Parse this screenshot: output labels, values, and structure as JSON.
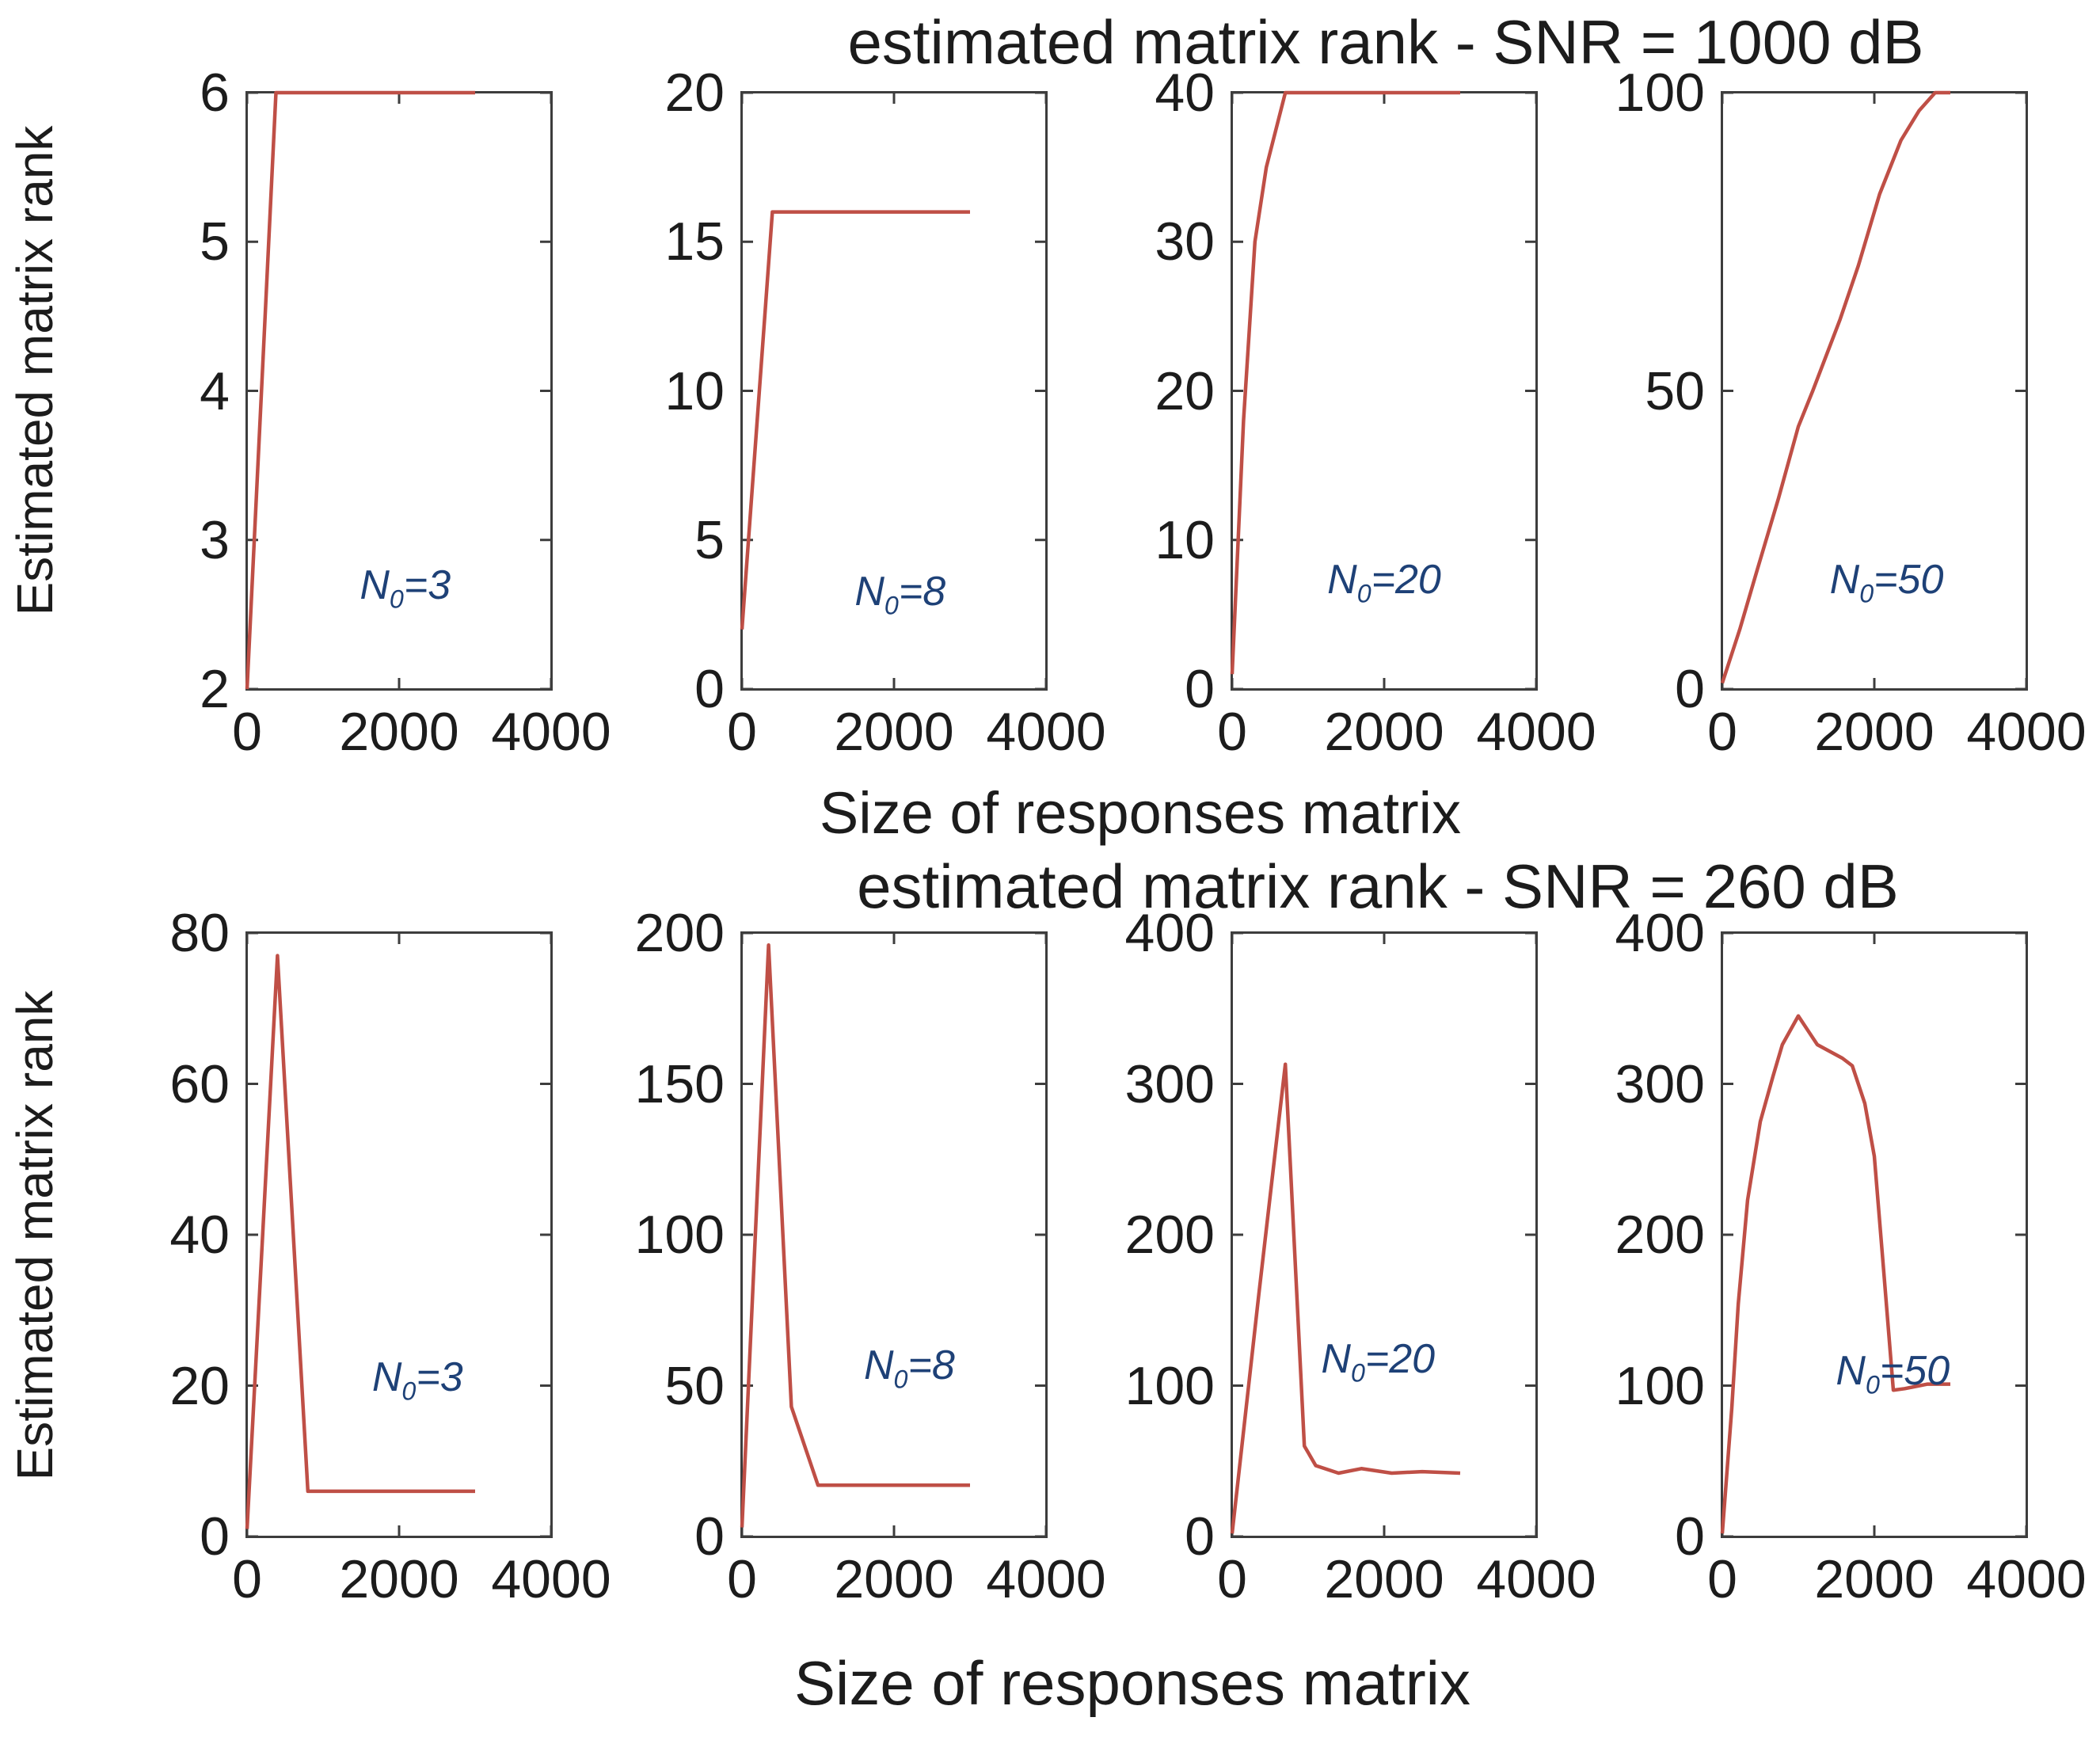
{
  "figure": {
    "rows": [
      {
        "title": "estimated matrix rank - SNR = 1000 dB",
        "ylabel": "Estimated matrix rank",
        "xlabel": "Size of responses matrix"
      },
      {
        "title": "estimated matrix rank - SNR = 260 dB",
        "ylabel": "Estimated matrix rank",
        "xlabel": "Size of responses matrix"
      }
    ]
  },
  "colors": {
    "line": "#bf4f46",
    "axis": "#3d3d3d",
    "tick_text": "#1c1c1c",
    "annotation": "#1e4177"
  },
  "chart_data": [
    {
      "type": "line",
      "row": 0,
      "col": 0,
      "annotation": {
        "pre": "N",
        "sub": "0",
        "post": "=3"
      },
      "xlim": [
        0,
        4000
      ],
      "xticks": [
        0,
        2000,
        4000
      ],
      "ylim": [
        2,
        6
      ],
      "yticks": [
        2,
        3,
        4,
        5,
        6
      ],
      "x": [
        0,
        380,
        1000,
        2000,
        3000
      ],
      "y": [
        2,
        6,
        6,
        6,
        6
      ]
    },
    {
      "type": "line",
      "row": 0,
      "col": 1,
      "annotation": {
        "pre": "N",
        "sub": "0",
        "post": "=8"
      },
      "xlim": [
        0,
        4000
      ],
      "xticks": [
        0,
        2000,
        4000
      ],
      "ylim": [
        0,
        20
      ],
      "yticks": [
        0,
        5,
        10,
        15,
        20
      ],
      "x": [
        0,
        400,
        1000,
        2000,
        3000
      ],
      "y": [
        2,
        16,
        16,
        16,
        16
      ]
    },
    {
      "type": "line",
      "row": 0,
      "col": 2,
      "annotation": {
        "pre": "N",
        "sub": "0",
        "post": "=20"
      },
      "xlim": [
        0,
        4000
      ],
      "xticks": [
        0,
        2000,
        4000
      ],
      "ylim": [
        0,
        40
      ],
      "yticks": [
        0,
        10,
        20,
        30,
        40
      ],
      "x": [
        0,
        150,
        300,
        450,
        700,
        1500,
        3000
      ],
      "y": [
        1,
        18,
        30,
        35,
        40,
        40,
        40
      ]
    },
    {
      "type": "line",
      "row": 0,
      "col": 3,
      "annotation": {
        "pre": "N",
        "sub": "0",
        "post": "=50"
      },
      "xlim": [
        0,
        4000
      ],
      "xticks": [
        0,
        2000,
        4000
      ],
      "ylim": [
        0,
        100
      ],
      "yticks": [
        0,
        50,
        100
      ],
      "x": [
        0,
        230,
        460,
        740,
        1000,
        1190,
        1550,
        1790,
        2070,
        2350,
        2590,
        2800,
        3000
      ],
      "y": [
        1,
        10,
        20,
        32,
        44,
        50,
        62,
        71,
        83,
        92,
        97,
        100,
        100
      ]
    },
    {
      "type": "line",
      "row": 1,
      "col": 0,
      "annotation": {
        "pre": "N",
        "sub": "0",
        "post": "=3"
      },
      "xlim": [
        0,
        4000
      ],
      "xticks": [
        0,
        2000,
        4000
      ],
      "ylim": [
        0,
        80
      ],
      "yticks": [
        0,
        20,
        40,
        60,
        80
      ],
      "x": [
        0,
        400,
        800,
        1500,
        2200,
        3000
      ],
      "y": [
        1,
        77,
        6,
        6,
        6,
        6
      ]
    },
    {
      "type": "line",
      "row": 1,
      "col": 1,
      "annotation": {
        "pre": "N",
        "sub": "0",
        "post": "=8"
      },
      "xlim": [
        0,
        4000
      ],
      "xticks": [
        0,
        2000,
        4000
      ],
      "ylim": [
        0,
        200
      ],
      "yticks": [
        0,
        50,
        100,
        150,
        200
      ],
      "x": [
        0,
        350,
        650,
        1000,
        1800,
        3000
      ],
      "y": [
        3,
        196,
        43,
        17,
        17,
        17
      ]
    },
    {
      "type": "line",
      "row": 1,
      "col": 2,
      "annotation": {
        "pre": "N",
        "sub": "0",
        "post": "=20"
      },
      "xlim": [
        0,
        4000
      ],
      "xticks": [
        0,
        2000,
        4000
      ],
      "ylim": [
        0,
        400
      ],
      "yticks": [
        0,
        100,
        200,
        300,
        400
      ],
      "x": [
        0,
        350,
        700,
        950,
        1100,
        1400,
        1700,
        2100,
        2500,
        3000
      ],
      "y": [
        2,
        160,
        313,
        60,
        47,
        42,
        45,
        42,
        43,
        42
      ]
    },
    {
      "type": "line",
      "row": 1,
      "col": 3,
      "annotation": {
        "pre": "N",
        "sub": "0",
        "post": "=50"
      },
      "xlim": [
        0,
        4000
      ],
      "xticks": [
        0,
        2000,
        4000
      ],
      "ylim": [
        0,
        400
      ],
      "yticks": [
        0,
        100,
        200,
        300,
        400
      ],
      "x": [
        0,
        125,
        210,
        333,
        500,
        667,
        790,
        1000,
        1250,
        1580,
        1710,
        1875,
        2000,
        2125,
        2250,
        2400,
        2700,
        3000
      ],
      "y": [
        2,
        85,
        154,
        223,
        275,
        305,
        326,
        345,
        326,
        317,
        312,
        287,
        252,
        175,
        97,
        98,
        101,
        101
      ]
    }
  ]
}
